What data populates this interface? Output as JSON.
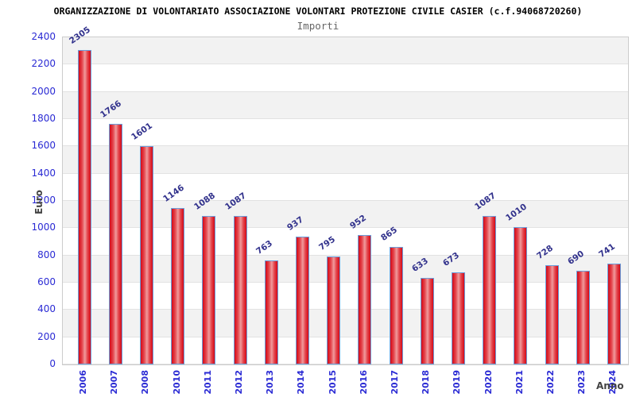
{
  "title": "ORGANIZZAZIONE DI VOLONTARIATO ASSOCIAZIONE VOLONTARI PROTEZIONE CIVILE CASIER (c.f.94068720260)",
  "subtitle": "Importi",
  "chart_data": {
    "type": "bar",
    "title": "ORGANIZZAZIONE DI VOLONTARIATO ASSOCIAZIONE VOLONTARI PROTEZIONE CIVILE CASIER (c.f.94068720260)",
    "subtitle": "Importi",
    "xlabel": "Anno",
    "ylabel": "Euro",
    "categories": [
      "2006",
      "2007",
      "2008",
      "2010",
      "2011",
      "2012",
      "2013",
      "2014",
      "2015",
      "2016",
      "2017",
      "2018",
      "2019",
      "2020",
      "2021",
      "2022",
      "2023",
      "2024"
    ],
    "values": [
      2305,
      1766,
      1601,
      1146,
      1088,
      1087,
      763,
      937,
      795,
      952,
      865,
      633,
      673,
      1087,
      1010,
      728,
      690,
      741
    ],
    "ylim": [
      0,
      2400
    ],
    "ytick_step": 200,
    "grid": true,
    "legend": "none",
    "colors": {
      "bar_edge_red": "#d40917",
      "bar_center_red": "#f09a9c",
      "bar_border_blue": "#6a9fdc",
      "axis_tick_blue": "#2a2ad4",
      "value_label_navy": "#31318c",
      "band_gray": "#f2f2f2",
      "grid_line": "#e2e2e2",
      "title_black": "#000000",
      "subtitle_gray": "#666666",
      "axis_label_gray": "#444444"
    }
  }
}
